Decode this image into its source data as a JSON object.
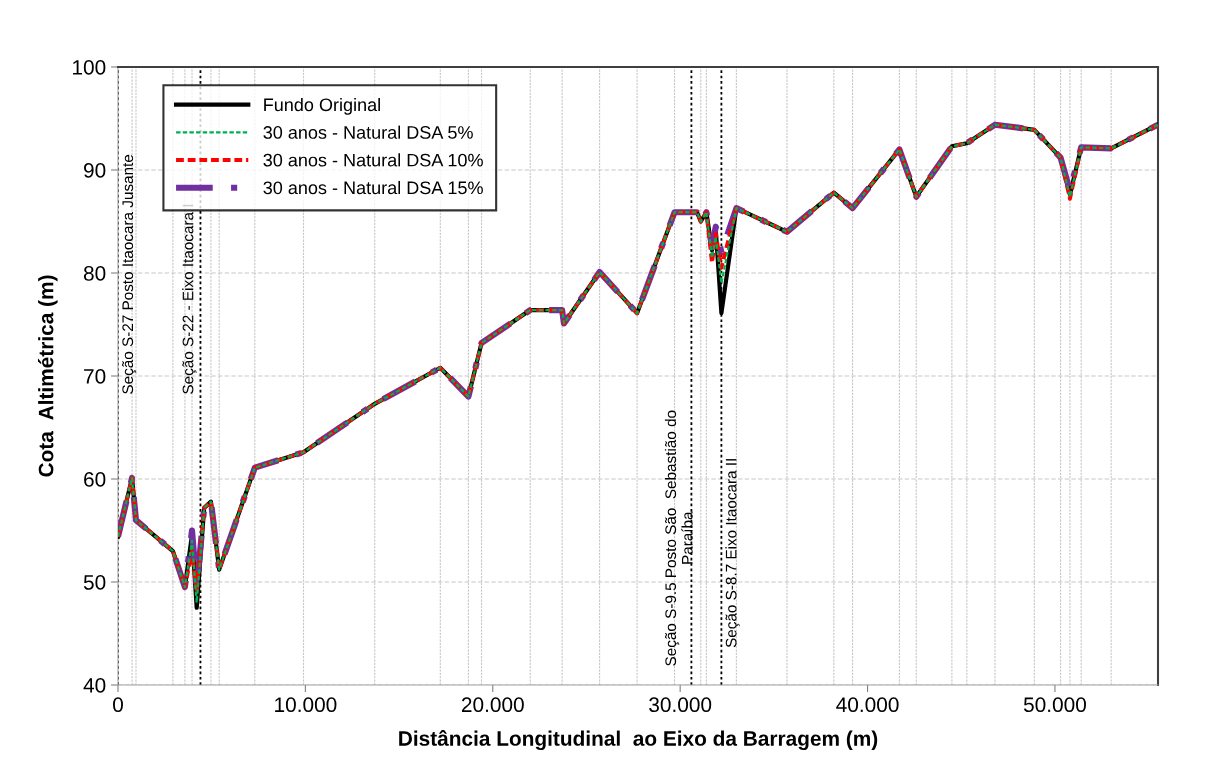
{
  "chart_data": {
    "type": "line",
    "xlabel": "Distância Longitudinal  ao Eixo da Barragem (m)",
    "ylabel": "Cota  Altimétrica (m)",
    "x": [
      0,
      0.75,
      0.96,
      2.93,
      3.57,
      3.95,
      4.2,
      4.6,
      4.96,
      5.4,
      7.3,
      9.9,
      13.7,
      17.2,
      18.7,
      19.4,
      22.0,
      23.7,
      23.8,
      25.7,
      27.7,
      29.7,
      30.9,
      31.1,
      31.4,
      31.7,
      31.9,
      32.2,
      33.0,
      35.7,
      38.2,
      39.2,
      41.7,
      42.6,
      44.5,
      45.3,
      46.8,
      48.9,
      50.3,
      50.8,
      51.4,
      53.0,
      55.5
    ],
    "series": [
      {
        "name": "Fundo Original",
        "color": "#000000",
        "line_style": "solid",
        "values": [
          54.4,
          60.1,
          56.0,
          53.0,
          49.5,
          54.6,
          47.5,
          57.2,
          57.8,
          51.2,
          61.1,
          62.6,
          67.3,
          70.8,
          68.0,
          73.2,
          76.4,
          76.4,
          75.1,
          80.1,
          76.1,
          85.9,
          85.9,
          85.0,
          85.9,
          82.2,
          84.2,
          76.1,
          86.3,
          84.0,
          87.8,
          86.3,
          92.0,
          87.4,
          92.3,
          92.6,
          94.4,
          93.9,
          91.2,
          87.6,
          92.2,
          92.1,
          94.4
        ]
      },
      {
        "name": "30 anos - Natural DSA 5%",
        "color": "#00b050",
        "line_style": "dashed",
        "values": [
          54.4,
          60.1,
          56.0,
          53.0,
          49.5,
          54.0,
          48.0,
          57.2,
          57.8,
          51.2,
          61.1,
          62.6,
          67.3,
          70.8,
          68.0,
          73.2,
          76.4,
          76.4,
          75.1,
          80.1,
          76.1,
          85.9,
          85.9,
          85.0,
          85.9,
          81.5,
          83.5,
          79.0,
          86.3,
          84.0,
          87.8,
          86.3,
          92.0,
          87.4,
          92.3,
          92.6,
          94.4,
          93.9,
          91.2,
          87.4,
          92.2,
          92.1,
          94.4
        ]
      },
      {
        "name": "30 anos - Natural DSA 10%",
        "color": "#ff0000",
        "line_style": "dashed",
        "values": [
          54.4,
          60.1,
          56.0,
          53.0,
          49.5,
          53.0,
          49.0,
          57.2,
          57.8,
          51.2,
          61.1,
          62.6,
          67.3,
          70.8,
          68.0,
          73.2,
          76.4,
          76.4,
          75.1,
          80.1,
          76.1,
          85.9,
          85.9,
          85.0,
          85.9,
          81.0,
          83.8,
          80.5,
          86.3,
          84.0,
          87.8,
          86.3,
          92.0,
          87.4,
          92.3,
          92.6,
          94.4,
          93.9,
          91.2,
          87.2,
          92.2,
          92.1,
          94.4
        ]
      },
      {
        "name": "30 anos - Natural DSA 15%",
        "color": "#7030a0",
        "line_style": "dashdot",
        "values": [
          54.4,
          60.1,
          56.0,
          53.0,
          49.5,
          55.0,
          49.5,
          57.2,
          57.8,
          51.2,
          61.1,
          62.6,
          67.3,
          70.8,
          68.0,
          73.2,
          76.4,
          76.4,
          75.1,
          80.1,
          76.1,
          85.9,
          85.9,
          85.0,
          85.9,
          82.5,
          84.5,
          82.0,
          86.3,
          84.0,
          87.8,
          86.3,
          92.0,
          87.4,
          92.3,
          92.6,
          94.4,
          93.9,
          91.2,
          88.0,
          92.2,
          92.1,
          94.4
        ]
      }
    ],
    "xlim": [
      0,
      55.5
    ],
    "xticks": [
      0,
      {
        "value": 10,
        "label": "10.000"
      },
      {
        "value": 20,
        "label": "20.000"
      },
      {
        "value": 30,
        "label": "30.000"
      },
      {
        "value": 40,
        "label": "40.000"
      },
      {
        "value": 50,
        "label": "50.000"
      }
    ],
    "ylim": [
      40,
      100
    ],
    "yticks": [
      40,
      50,
      60,
      70,
      80,
      90,
      100
    ],
    "grid": "y",
    "legend": "top left",
    "marker": "none",
    "ref_lines": [
      {
        "axis": "x",
        "value": 0,
        "label": "Seção S-27 Posto Itaocara Jusante",
        "color": "#000000",
        "line_style": "dotted"
      },
      {
        "axis": "x",
        "value": 4.4,
        "label": "Seção S-22 - Eixo Itaocara I",
        "color": "#000000",
        "line_style": "dotted"
      },
      {
        "axis": "x",
        "value": 30.6,
        "label": "Seção S-9.5 Posto São  Sebastião do\nParaíba",
        "color": "#000000",
        "line_style": "dotted"
      },
      {
        "axis": "x",
        "value": 32.2,
        "label": "Seção S-8.7 Eixo Itaocara II",
        "color": "#000000",
        "line_style": "dotted"
      },
      {
        "axis": "x",
        "value": 0.75,
        "color": "#c8c8c8",
        "line_style": "dashed"
      },
      {
        "axis": "x",
        "value": 0.96,
        "color": "#c8c8c8",
        "line_style": "dashed"
      },
      {
        "axis": "x",
        "value": 2.93,
        "color": "#c8c8c8",
        "line_style": "dashed"
      },
      {
        "axis": "x",
        "value": 3.57,
        "color": "#c8c8c8",
        "line_style": "dashed"
      },
      {
        "axis": "x",
        "value": 3.95,
        "color": "#c8c8c8",
        "line_style": "dashed"
      },
      {
        "axis": "x",
        "value": 4.96,
        "color": "#c8c8c8",
        "line_style": "dashed"
      },
      {
        "axis": "x",
        "value": 5.4,
        "color": "#c8c8c8",
        "line_style": "dashed"
      },
      {
        "axis": "x",
        "value": 7.3,
        "color": "#c8c8c8",
        "line_style": "dashed"
      },
      {
        "axis": "x",
        "value": 9.9,
        "color": "#c8c8c8",
        "line_style": "dashed"
      },
      {
        "axis": "x",
        "value": 13.7,
        "color": "#c8c8c8",
        "line_style": "dashed"
      },
      {
        "axis": "x",
        "value": 17.2,
        "color": "#c8c8c8",
        "line_style": "dashed"
      },
      {
        "axis": "x",
        "value": 18.7,
        "color": "#c8c8c8",
        "line_style": "dashed"
      },
      {
        "axis": "x",
        "value": 19.4,
        "color": "#c8c8c8",
        "line_style": "dashed"
      },
      {
        "axis": "x",
        "value": 22.0,
        "color": "#c8c8c8",
        "line_style": "dashed"
      },
      {
        "axis": "x",
        "value": 23.7,
        "color": "#c8c8c8",
        "line_style": "dashed"
      },
      {
        "axis": "x",
        "value": 25.7,
        "color": "#c8c8c8",
        "line_style": "dashed"
      },
      {
        "axis": "x",
        "value": 27.7,
        "color": "#c8c8c8",
        "line_style": "dashed"
      },
      {
        "axis": "x",
        "value": 29.7,
        "color": "#c8c8c8",
        "line_style": "dashed"
      },
      {
        "axis": "x",
        "value": 31.1,
        "color": "#c8c8c8",
        "line_style": "dashed"
      },
      {
        "axis": "x",
        "value": 31.4,
        "color": "#c8c8c8",
        "line_style": "dashed"
      },
      {
        "axis": "x",
        "value": 33.0,
        "color": "#c8c8c8",
        "line_style": "dashed"
      },
      {
        "axis": "x",
        "value": 35.7,
        "color": "#c8c8c8",
        "line_style": "dashed"
      },
      {
        "axis": "x",
        "value": 38.2,
        "color": "#c8c8c8",
        "line_style": "dashed"
      },
      {
        "axis": "x",
        "value": 39.2,
        "color": "#c8c8c8",
        "line_style": "dashed"
      },
      {
        "axis": "x",
        "value": 41.7,
        "color": "#c8c8c8",
        "line_style": "dashed"
      },
      {
        "axis": "x",
        "value": 42.6,
        "color": "#c8c8c8",
        "line_style": "dashed"
      },
      {
        "axis": "x",
        "value": 44.5,
        "color": "#c8c8c8",
        "line_style": "dashed"
      },
      {
        "axis": "x",
        "value": 45.3,
        "color": "#c8c8c8",
        "line_style": "dashed"
      },
      {
        "axis": "x",
        "value": 46.8,
        "color": "#c8c8c8",
        "line_style": "dashed"
      },
      {
        "axis": "x",
        "value": 48.9,
        "color": "#c8c8c8",
        "line_style": "dashed"
      },
      {
        "axis": "x",
        "value": 50.3,
        "color": "#c8c8c8",
        "line_style": "dashed"
      },
      {
        "axis": "x",
        "value": 50.8,
        "color": "#c8c8c8",
        "line_style": "dashed"
      },
      {
        "axis": "x",
        "value": 51.4,
        "color": "#c8c8c8",
        "line_style": "dashed"
      },
      {
        "axis": "x",
        "value": 53.0,
        "color": "#c8c8c8",
        "line_style": "dashed"
      }
    ]
  }
}
